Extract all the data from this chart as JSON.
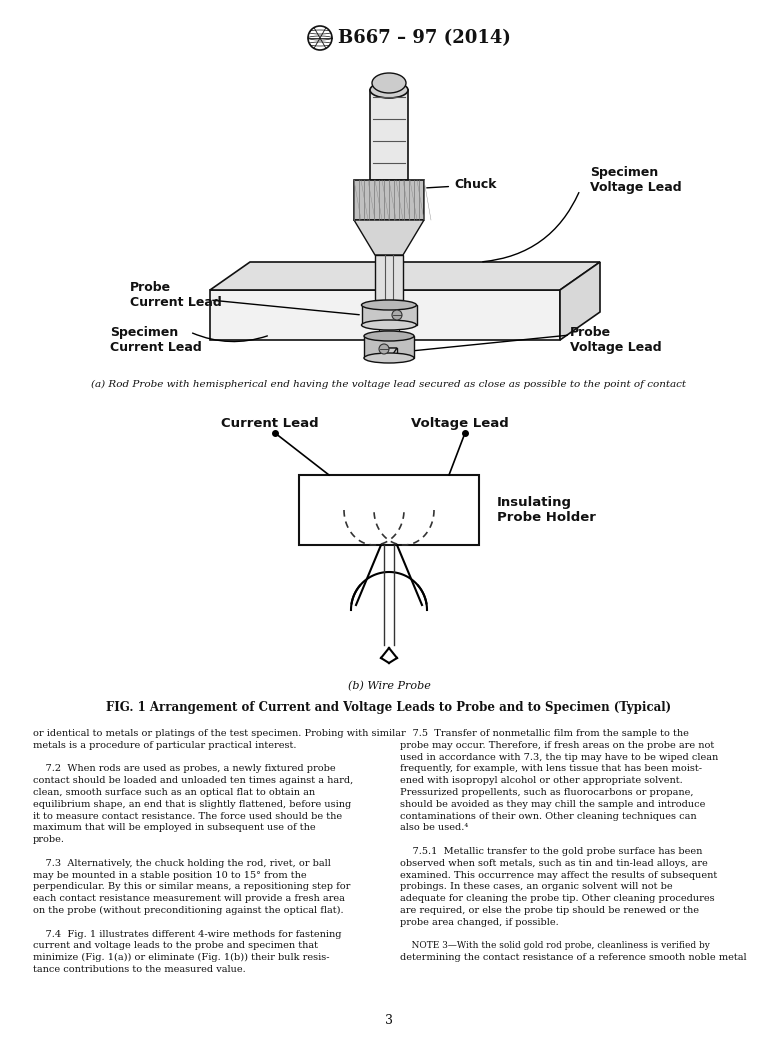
{
  "page_width": 7.78,
  "page_height": 10.41,
  "dpi": 100,
  "background_color": "#ffffff",
  "title": "B667 – 97 (2014)",
  "fig_caption_a": "(a) Rod Probe with hemispherical end having the voltage lead secured as close as possible to the point of contact",
  "fig_caption_b": "(b) Wire Probe",
  "fig_main_caption": "FIG. 1 Arrangement of Current and Voltage Leads to Probe and to Specimen (Typical)",
  "labels": {
    "chuck": "Chuck",
    "specimen_voltage_lead": "Specimen\nVoltage Lead",
    "probe_current_lead": "Probe\nCurrent Lead",
    "specimen_current_lead": "Specimen\nCurrent Lead",
    "probe_voltage_lead": "Probe\nVoltage Lead",
    "current_lead": "Current Lead",
    "voltage_lead": "Voltage Lead",
    "insulating_probe_holder": "Insulating\nProbe Holder"
  },
  "text_body_left": [
    "or identical to metals or platings of the test specimen. Probing with similar",
    "metals is a procedure of particular practical interest.",
    "",
    "    7.2  When rods are used as probes, a newly fixtured probe",
    "contact should be loaded and unloaded ten times against a hard,",
    "clean, smooth surface such as an optical flat to obtain an",
    "equilibrium shape, an end that is slightly flattened, before using",
    "it to measure contact resistance. The force used should be the",
    "maximum that will be employed in subsequent use of the",
    "probe.",
    "",
    "    7.3  Alternatively, the chuck holding the rod, rivet, or ball",
    "may be mounted in a stable position 10 to 15° from the",
    "perpendicular. By this or similar means, a repositioning step for",
    "each contact resistance measurement will provide a fresh area",
    "on the probe (without preconditioning against the optical flat).",
    "",
    "    7.4  [Fig. 1] illustrates different [4-wire] methods for fastening",
    "current and voltage leads to the probe and specimen that",
    "minimize ([Fig. 1(a)]) or eliminate ([Fig. 1(b)]) their bulk resis-",
    "tance contributions to the measured value."
  ],
  "text_body_right": [
    "    7.5  Transfer of nonmetallic film from the sample to the",
    "probe may occur. Therefore, if fresh areas on the probe are not",
    "used in accordance with [7.3], the tip may have to be wiped clean",
    "frequently, for example, with lens tissue that has been moist-",
    "ened with isopropyl alcohol or other appropriate solvent.",
    "Pressurized propellents, such as fluorocarbons or propane,",
    "should be avoided as they may chill the sample and introduce",
    "contaminations of their own. Other cleaning techniques can",
    "also be used.⁴",
    "",
    "    7.5.1  Metallic transfer to the gold probe surface has been",
    "observed when soft metals, such as tin and tin-lead alloys, are",
    "examined. This occurrence may affect the results of subsequent",
    "probings. In these cases, an organic solvent will not be",
    "adequate for cleaning the probe tip. Other cleaning procedures",
    "are required, or else the probe tip should be renewed or the",
    "probe area changed, if possible.",
    "",
    "    NOTE 3—With the solid gold rod probe, cleanliness is verified by",
    "determining the contact resistance of a reference smooth noble metal"
  ],
  "page_number": "3"
}
